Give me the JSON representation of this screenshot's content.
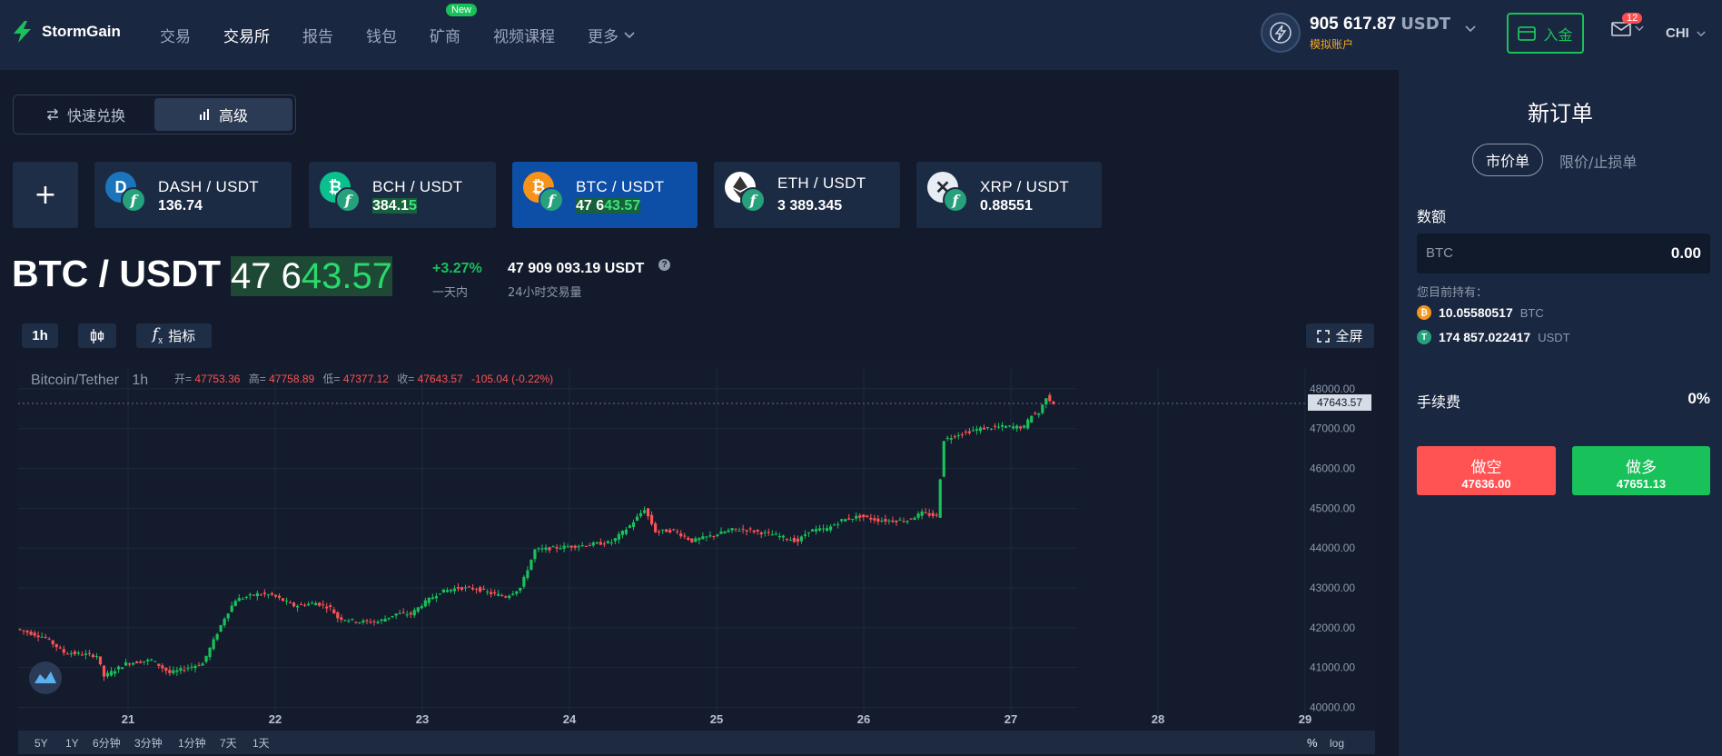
{
  "header": {
    "brand": "StormGain",
    "nav": [
      {
        "label": "交易",
        "active": false
      },
      {
        "label": "交易所",
        "active": true
      },
      {
        "label": "报告",
        "active": false
      },
      {
        "label": "钱包",
        "active": false
      },
      {
        "label": "矿商",
        "active": false,
        "badge": "New"
      },
      {
        "label": "视频课程",
        "active": false
      },
      {
        "label": "更多",
        "active": false,
        "dropdown": true
      }
    ],
    "balance": "905 617.87",
    "balance_currency": "USDT",
    "account_type": "模拟账户",
    "deposit_label": "入金",
    "mail_count": "12",
    "language": "CHI"
  },
  "mode_switch": {
    "quick": "快速兑换",
    "advanced": "高级"
  },
  "pairs": [
    {
      "name": "DASH / USDT",
      "price_a": "136.74",
      "price_b": "",
      "coin": "dash",
      "color": "#1c75bc",
      "active": false
    },
    {
      "name": "BCH / USDT",
      "price_a": "384.1",
      "price_b": "5",
      "coin": "bch",
      "color": "#0ac18e",
      "active": false
    },
    {
      "name": "BTC / USDT",
      "price_a": "47 6",
      "price_b": "43.57",
      "coin": "btc",
      "color": "#f7931a",
      "active": true
    },
    {
      "name": "ETH / USDT",
      "price_a": "3 389.345",
      "price_b": "",
      "coin": "eth",
      "color": "#ffffff",
      "active": false
    },
    {
      "name": "XRP / USDT",
      "price_a": "0.88551",
      "price_b": "",
      "coin": "xrp",
      "color": "#e8edf5",
      "active": false
    }
  ],
  "ticker": {
    "pair": "BTC / USDT",
    "price_a": "47 6",
    "price_b": "43.57",
    "change": "+3.27%",
    "change_label": "一天内",
    "volume": "47 909 093.19 USDT",
    "volume_label": "24小时交易量"
  },
  "toolbar": {
    "interval": "1h",
    "indicators": "指标",
    "fullscreen": "全屏"
  },
  "chart_legend": {
    "symbol": "Bitcoin/Tether",
    "interval": "1h",
    "open_label": "开=",
    "open": "47753.36",
    "high_label": "高=",
    "high": "47758.89",
    "low_label": "低=",
    "low": "47377.12",
    "close_label": "收=",
    "close": "47643.57",
    "delta": "-105.04 (-0.22%)"
  },
  "chart_data": {
    "type": "candlestick",
    "title": "Bitcoin/Tether",
    "interval": "1h",
    "x_ticks": [
      "21",
      "22",
      "23",
      "24",
      "25",
      "26",
      "27",
      "28",
      "29"
    ],
    "y_ticks": [
      "40000.00",
      "41000.00",
      "42000.00",
      "43000.00",
      "44000.00",
      "45000.00",
      "46000.00",
      "47000.00",
      "48000.00"
    ],
    "ylim": [
      39600,
      48500
    ],
    "current_price_label": "47643.57",
    "current_price": 47643.57,
    "up_color": "#19c15a",
    "down_color": "#ff5252",
    "path": [
      [
        0,
        41970
      ],
      [
        8,
        41750
      ],
      [
        13,
        41380
      ],
      [
        22,
        41300
      ],
      [
        24,
        40780
      ],
      [
        30,
        41100
      ],
      [
        37,
        41190
      ],
      [
        42,
        40860
      ],
      [
        47,
        41000
      ],
      [
        51,
        41100
      ],
      [
        57,
        42250
      ],
      [
        60,
        42700
      ],
      [
        66,
        42850
      ],
      [
        70,
        42820
      ],
      [
        76,
        42550
      ],
      [
        82,
        42620
      ],
      [
        86,
        42500
      ],
      [
        88,
        42250
      ],
      [
        94,
        42150
      ],
      [
        99,
        42150
      ],
      [
        104,
        42350
      ],
      [
        108,
        42340
      ],
      [
        111,
        42580
      ],
      [
        116,
        42900
      ],
      [
        121,
        43000
      ],
      [
        126,
        42980
      ],
      [
        130,
        42860
      ],
      [
        134,
        42780
      ],
      [
        138,
        43000
      ],
      [
        142,
        43950
      ],
      [
        149,
        44020
      ],
      [
        156,
        44080
      ],
      [
        163,
        44150
      ],
      [
        168,
        44560
      ],
      [
        172,
        44980
      ],
      [
        175,
        44420
      ],
      [
        180,
        44440
      ],
      [
        185,
        44180
      ],
      [
        190,
        44300
      ],
      [
        196,
        44460
      ],
      [
        200,
        44460
      ],
      [
        208,
        44320
      ],
      [
        214,
        44170
      ],
      [
        217,
        44440
      ],
      [
        222,
        44480
      ],
      [
        226,
        44700
      ],
      [
        231,
        44800
      ],
      [
        236,
        44700
      ],
      [
        240,
        44690
      ],
      [
        244,
        44700
      ],
      [
        248,
        44880
      ],
      [
        252,
        44800
      ],
      [
        254,
        46720
      ],
      [
        258,
        46860
      ],
      [
        264,
        47000
      ],
      [
        270,
        47050
      ],
      [
        276,
        47040
      ],
      [
        278,
        47350
      ],
      [
        280,
        47380
      ],
      [
        282,
        47800
      ],
      [
        284,
        47643.57
      ]
    ],
    "x_domain": [
      0,
      290
    ]
  },
  "bottom_bar": {
    "ranges": [
      "5Y",
      "1Y",
      "6分钟",
      "3分钟",
      "1分钟",
      "7天",
      "1天"
    ],
    "percent": "%",
    "log": "log"
  },
  "order_panel": {
    "title": "新订单",
    "tab_market": "市价单",
    "tab_limit": "限价/止损单",
    "amount_label": "数额",
    "input_currency": "BTC",
    "input_value": "0.00",
    "holdings_label": "您目前持有：",
    "holdings": [
      {
        "amount": "10.05580517",
        "currency": "BTC",
        "color": "#f7931a"
      },
      {
        "amount": "174 857.022417",
        "currency": "USDT",
        "color": "#26a17b"
      }
    ],
    "fee_label": "手续费",
    "fee_value": "0%",
    "short_label": "做空",
    "short_price": "47636.00",
    "long_label": "做多",
    "long_price": "47651.13"
  }
}
